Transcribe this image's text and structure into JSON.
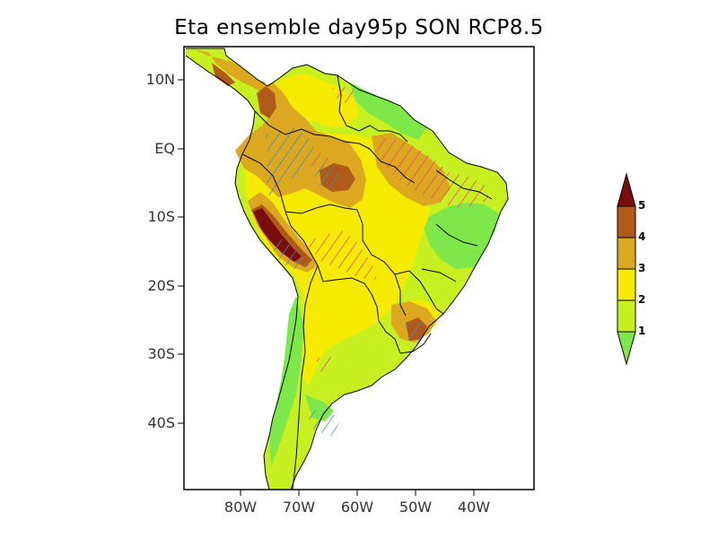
{
  "title": "Eta ensemble day95p SON RCP8.5",
  "lat_labels": [
    "10N",
    "EQ",
    "10S",
    "20S",
    "30S",
    "40S"
  ],
  "lon_labels": [
    "80W",
    "70W",
    "60W",
    "50W",
    "40W"
  ],
  "colorbar": {
    "labels": [
      "1",
      "2",
      "3",
      "4",
      "5"
    ],
    "colors": {
      "below_1": "#7ee84a",
      "1_2": "#c8f020",
      "2_3": "#f6ea00",
      "3_4": "#dba820",
      "4_5": "#b05a1a",
      "above_5": "#7a0c0c"
    }
  },
  "hatching": {
    "positive_color": "#e84a6a",
    "negative_color": "#3a8cc8"
  }
}
